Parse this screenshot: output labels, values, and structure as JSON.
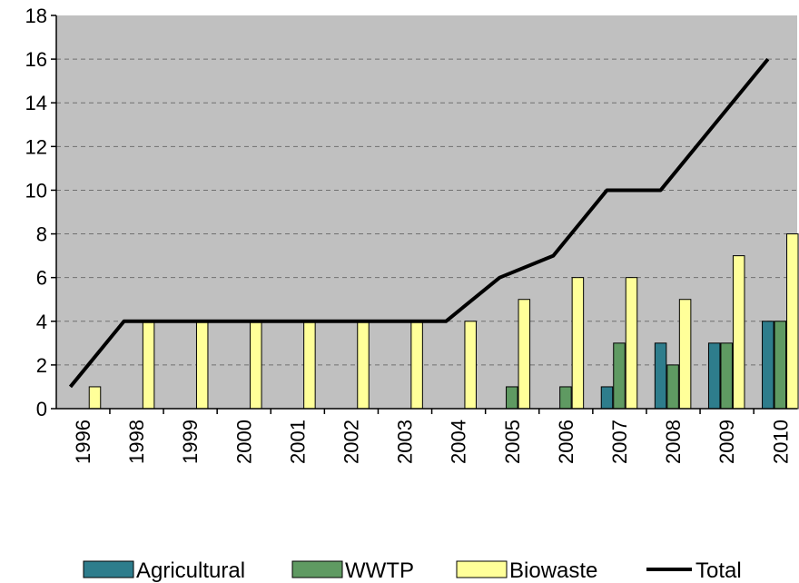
{
  "chart_data": {
    "type": "bar",
    "categories": [
      "1996",
      "1998",
      "1999",
      "2000",
      "2001",
      "2002",
      "2003",
      "2004",
      "2005",
      "2006",
      "2007",
      "2008",
      "2009",
      "2010"
    ],
    "series": [
      {
        "name": "Agricultural",
        "type": "bar",
        "color": "#2e7d8c",
        "values": [
          0,
          0,
          0,
          0,
          0,
          0,
          0,
          0,
          0,
          0,
          1,
          3,
          3,
          4
        ]
      },
      {
        "name": "WWTP",
        "type": "bar",
        "color": "#5f9a62",
        "values": [
          0,
          0,
          0,
          0,
          0,
          0,
          0,
          0,
          1,
          1,
          3,
          2,
          3,
          4
        ]
      },
      {
        "name": "Biowaste",
        "type": "bar",
        "color": "#ffff99",
        "values": [
          1,
          4,
          4,
          4,
          4,
          4,
          4,
          4,
          5,
          6,
          6,
          5,
          7,
          8
        ]
      },
      {
        "name": "Total",
        "type": "line",
        "color": "#000000",
        "values": [
          1,
          4,
          4,
          4,
          4,
          4,
          4,
          4,
          6,
          7,
          10,
          10,
          13,
          16
        ]
      }
    ],
    "ylim": [
      0,
      18
    ],
    "yticks": [
      "0",
      "2",
      "4",
      "6",
      "8",
      "10",
      "12",
      "14",
      "16",
      "18"
    ],
    "grid": "horizontal-dashed",
    "plot_background": "#c0c0c0",
    "legend_position": "bottom"
  }
}
